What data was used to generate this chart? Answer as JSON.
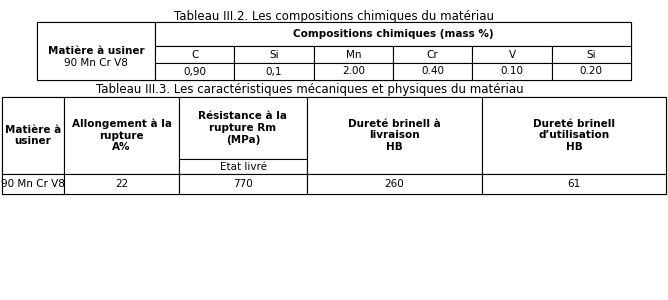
{
  "title1": "Tableau III.2. Les compositions chimiques du matériau",
  "title2": "Tableau III.3. Les caractéristiques mécaniques et physiques du matériau",
  "table1": {
    "header_col": "Matière à usiner",
    "header_span": "Compositions chimiques (mass %)",
    "sub_headers": [
      "C",
      "Si",
      "Mn",
      "Cr",
      "V",
      "Si"
    ],
    "row_label": "90 Mn Cr V8",
    "row_values": [
      "0,90",
      "0,1",
      "2.00",
      "0.40",
      "0.10",
      "0.20"
    ]
  },
  "table2": {
    "headers": [
      "Matière à\nusiner",
      "Allongement à la\nrupture\nA%",
      "Résistance à la\nrupture Rm\n(MPa)",
      "Dureté brinell à\nlivraison\nHB",
      "Dureté brinell\nd’utilisation\nHB"
    ],
    "sub_header3": "Etat livré",
    "row_label": "90 Mn Cr V8",
    "row_values": [
      "22",
      "770",
      "260",
      "61"
    ]
  },
  "bg_color": "#ffffff",
  "font_size_title": 8.5,
  "font_size_header": 7.5,
  "font_size_data": 7.5
}
